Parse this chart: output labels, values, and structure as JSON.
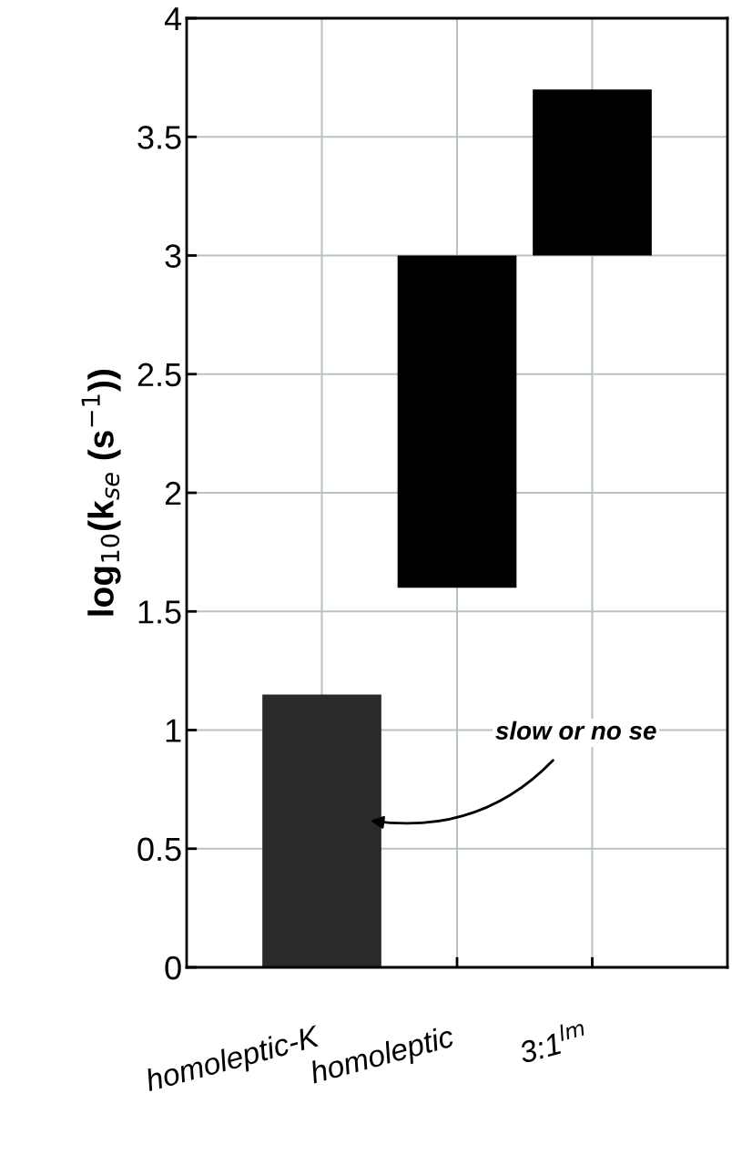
{
  "chart_data": {
    "type": "bar",
    "ylabel": "log$_{10}$(k$_{se}$ (s$^{−1}$))",
    "categories": [
      "homoleptic-K",
      "homoleptic",
      "3:1$^{lm}$"
    ],
    "values": [
      1.15,
      1.4,
      0.7
    ],
    "base": [
      0,
      1.6,
      3.0
    ],
    "colors": [
      "#2a2a2a",
      "#000000",
      "#000000"
    ],
    "ylim": [
      0,
      4
    ],
    "yticks": [
      0,
      0.5,
      1,
      1.5,
      2,
      2.5,
      3,
      3.5,
      4
    ],
    "grid": true,
    "annotations": [
      "slow or no se"
    ]
  }
}
